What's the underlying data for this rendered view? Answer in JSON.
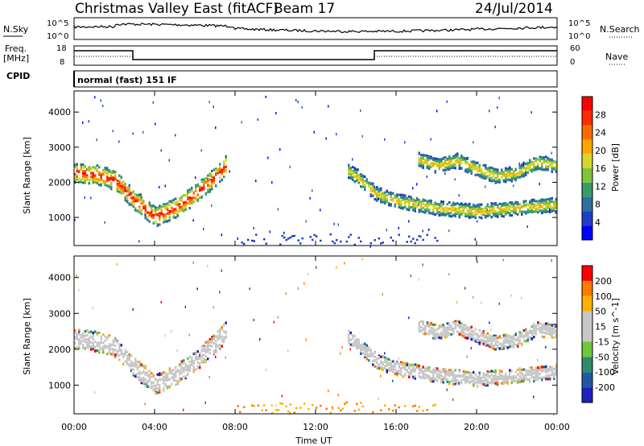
{
  "header": {
    "station": "Christmas Valley East (fitACF)",
    "beam": "Beam 17",
    "date": "24/Jul/2014"
  },
  "noise_panel": {
    "left_label": "N.Sky",
    "right_label": "N.Search",
    "left_ticks": [
      "10^5",
      "10^0"
    ],
    "right_ticks": [
      "10^5",
      "10^0"
    ]
  },
  "freq_panel": {
    "left_label_1": "Freq.",
    "left_label_2": "[MHz]",
    "left_ticks": [
      "18",
      "8"
    ],
    "right_label": "Nave",
    "right_ticks": [
      "60",
      "0"
    ],
    "cpid_label": "CPID"
  },
  "cpid_panel": {
    "text": "normal (fast) 151 IF"
  },
  "colors": {
    "power": [
      "#0000ff",
      "#1f3fc8",
      "#2e6f9e",
      "#3a9b6c",
      "#7fc43a",
      "#d9d62a",
      "#ffa500",
      "#ff6a00",
      "#ff2a00",
      "#ff0000"
    ],
    "velocity": [
      "#ff0000",
      "#ff7a00",
      "#ffb000",
      "#c8c8c8",
      "#c8c8c8",
      "#6fc83a",
      "#2e8c6a",
      "#1f5aa0",
      "#2020c0"
    ]
  },
  "chart_data": [
    {
      "type": "heatmap",
      "name": "power",
      "ylabel": "Slant Range [km]",
      "yticks": [
        "1000",
        "2000",
        "3000",
        "4000"
      ],
      "ylim": [
        200,
        4600
      ],
      "xlim": [
        0,
        24
      ],
      "colorbar_label": "Power [dB]",
      "colorbar_ticks": [
        "4",
        "8",
        "12",
        "16",
        "20",
        "24",
        "28"
      ],
      "colorbar_range": [
        0,
        32
      ],
      "band_center": [
        [
          0,
          2300
        ],
        [
          1,
          2250
        ],
        [
          2,
          2100
        ],
        [
          3,
          1500
        ],
        [
          4,
          1050
        ],
        [
          5,
          1300
        ],
        [
          6,
          1700
        ],
        [
          7,
          2200
        ],
        [
          7.5,
          2500
        ]
      ],
      "band2_center": [
        [
          13.5,
          2400
        ],
        [
          14,
          2200
        ],
        [
          15,
          1700
        ],
        [
          16,
          1500
        ],
        [
          17,
          1400
        ],
        [
          18,
          1300
        ],
        [
          20,
          1200
        ],
        [
          22,
          1300
        ],
        [
          24,
          1400
        ]
      ],
      "band3_center": [
        [
          17,
          2700
        ],
        [
          18,
          2500
        ],
        [
          19,
          2650
        ],
        [
          20,
          2400
        ],
        [
          21,
          2200
        ],
        [
          22,
          2300
        ],
        [
          23,
          2600
        ],
        [
          24,
          2500
        ]
      ]
    },
    {
      "type": "heatmap",
      "name": "velocity",
      "ylabel": "Slant Range [km]",
      "yticks": [
        "1000",
        "2000",
        "3000",
        "4000"
      ],
      "ylim": [
        200,
        4600
      ],
      "xlim": [
        0,
        24
      ],
      "colorbar_label": "Velocity [m s^-1]",
      "colorbar_ticks": [
        "200",
        "100",
        "50",
        "15",
        "-15",
        "-50",
        "-100",
        "-200"
      ],
      "xticks": [
        "00:00",
        "04:00",
        "08:00",
        "12:00",
        "16:00",
        "20:00",
        "00:00"
      ],
      "xlabel": "Time UT"
    }
  ]
}
